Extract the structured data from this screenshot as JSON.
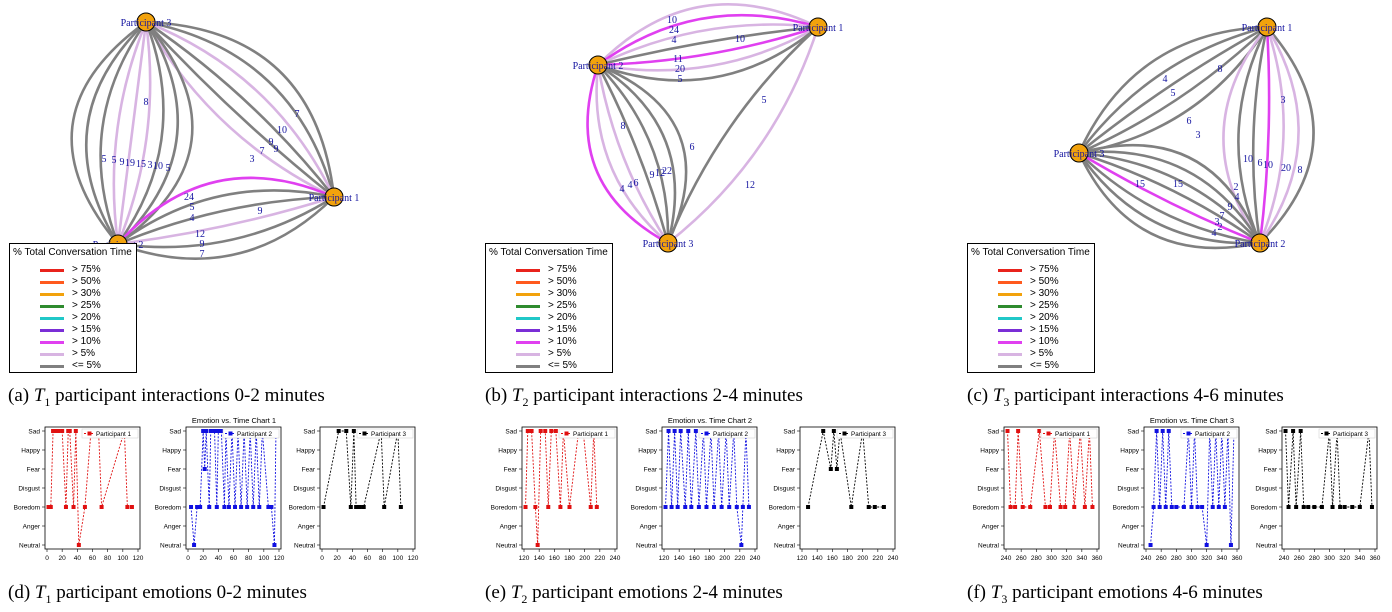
{
  "colors": {
    "node_fill": "#F2A20C",
    "node_label": "#1414A0",
    "edge_gray": "#808080",
    "edge_light": "#D8B4E2",
    "edge_magenta": "#E040F0",
    "emotion_p1": "#E01010",
    "emotion_p2": "#1010E0",
    "emotion_p3": "#000000"
  },
  "legend": {
    "title": "% Total Conversation Time",
    "items": [
      {
        "label": "> 75%",
        "color": "#E8231C"
      },
      {
        "label": "> 50%",
        "color": "#FF5A1E"
      },
      {
        "label": "> 30%",
        "color": "#F2A20C"
      },
      {
        "label": "> 25%",
        "color": "#2E8B2E"
      },
      {
        "label": "> 20%",
        "color": "#20C8C8"
      },
      {
        "label": "> 15%",
        "color": "#7A2ED6"
      },
      {
        "label": "> 10%",
        "color": "#E040F0"
      },
      {
        "label": "> 5%",
        "color": "#D8B4E2"
      },
      {
        "label": "<= 5%",
        "color": "#808080"
      }
    ]
  },
  "networks": [
    {
      "caption_prefix": "(a) ",
      "caption_var": "T",
      "caption_sub": "1",
      "caption_rest": " participant interactions 0-2 minutes",
      "nodes": [
        {
          "id": "P3",
          "label": "Participant 3"
        },
        {
          "id": "P1",
          "label": "Participant 1"
        },
        {
          "id": "P2",
          "label": "Participant 2"
        }
      ],
      "edge_labels": [
        "8",
        "7",
        "10",
        "9",
        "9",
        "7",
        "3",
        "5",
        "5",
        "9",
        "19",
        "15",
        "3",
        "10",
        "5",
        "24",
        "5",
        "4",
        "9",
        "12",
        "9",
        "7"
      ]
    },
    {
      "caption_prefix": "(b) ",
      "caption_var": "T",
      "caption_sub": "2",
      "caption_rest": " participant interactions 2-4 minutes",
      "nodes": [
        {
          "id": "P2",
          "label": "Participant 2"
        },
        {
          "id": "P1",
          "label": "Participant 1"
        },
        {
          "id": "P3",
          "label": "Participant 3"
        }
      ],
      "edge_labels": [
        "10",
        "24",
        "4",
        "10",
        "11",
        "20",
        "5",
        "5",
        "6",
        "12",
        "8",
        "4",
        "4",
        "6",
        "9",
        "12",
        "22"
      ]
    },
    {
      "caption_prefix": "(c) ",
      "caption_var": "T",
      "caption_sub": "3",
      "caption_rest": " participant interactions 4-6 minutes",
      "nodes": [
        {
          "id": "P1",
          "label": "Participant 1"
        },
        {
          "id": "P3",
          "label": "Participant 3"
        },
        {
          "id": "P2",
          "label": "Participant 2"
        }
      ],
      "edge_labels": [
        "4",
        "5",
        "8",
        "6",
        "3",
        "3",
        "10",
        "6",
        "10",
        "15",
        "20",
        "8",
        "15",
        "2",
        "4",
        "9",
        "7",
        "3",
        "2",
        "4"
      ]
    }
  ],
  "emotion_charts": [
    {
      "caption_prefix": "(d) ",
      "caption_var": "T",
      "caption_sub": "1",
      "caption_rest": " participant emotions 0-2 minutes",
      "title": "Emotion vs. Time Chart 1",
      "y_categories": [
        "Sad",
        "Happy",
        "Fear",
        "Disgust",
        "Boredom",
        "Anger",
        "Neutral"
      ],
      "panels": [
        {
          "legend": "Participant 1",
          "color": "#E01010",
          "xticks": [
            "0",
            "20",
            "40",
            "60",
            "80",
            "100",
            "120"
          ],
          "xlim": [
            0,
            120
          ],
          "points": [
            [
              2,
              4
            ],
            [
              5,
              4
            ],
            [
              8,
              0
            ],
            [
              12,
              0
            ],
            [
              15,
              0
            ],
            [
              20,
              0
            ],
            [
              25,
              4
            ],
            [
              28,
              0
            ],
            [
              30,
              0
            ],
            [
              35,
              4
            ],
            [
              38,
              0
            ],
            [
              42,
              6
            ],
            [
              50,
              4
            ],
            [
              58,
              0
            ],
            [
              68,
              0
            ],
            [
              72,
              4
            ],
            [
              102,
              0
            ],
            [
              106,
              4
            ],
            [
              112,
              4
            ]
          ]
        },
        {
          "legend": "Participant 2",
          "color": "#1010E0",
          "xticks": [
            "0",
            "20",
            "40",
            "60",
            "80",
            "100",
            "120"
          ],
          "xlim": [
            0,
            120
          ],
          "points": [
            [
              4,
              4
            ],
            [
              8,
              6
            ],
            [
              12,
              4
            ],
            [
              16,
              4
            ],
            [
              20,
              0
            ],
            [
              22,
              2
            ],
            [
              24,
              0
            ],
            [
              28,
              4
            ],
            [
              30,
              0
            ],
            [
              35,
              0
            ],
            [
              38,
              4
            ],
            [
              40,
              0
            ],
            [
              44,
              0
            ],
            [
              48,
              4
            ],
            [
              50,
              0
            ],
            [
              54,
              4
            ],
            [
              58,
              0
            ],
            [
              62,
              4
            ],
            [
              66,
              0
            ],
            [
              70,
              4
            ],
            [
              74,
              0
            ],
            [
              78,
              4
            ],
            [
              82,
              0
            ],
            [
              86,
              4
            ],
            [
              90,
              0
            ],
            [
              94,
              4
            ],
            [
              98,
              0
            ],
            [
              106,
              4
            ],
            [
              110,
              4
            ],
            [
              114,
              6
            ],
            [
              116,
              0
            ]
          ]
        },
        {
          "legend": "Participant 3",
          "color": "#000000",
          "xticks": [
            "0",
            "20",
            "40",
            "60",
            "80",
            "100",
            "120"
          ],
          "xlim": [
            0,
            120
          ],
          "points": [
            [
              2,
              4
            ],
            [
              22,
              0
            ],
            [
              32,
              0
            ],
            [
              38,
              4
            ],
            [
              42,
              0
            ],
            [
              45,
              4
            ],
            [
              50,
              4
            ],
            [
              55,
              4
            ],
            [
              78,
              0
            ],
            [
              82,
              4
            ],
            [
              100,
              0
            ],
            [
              104,
              4
            ]
          ]
        }
      ]
    },
    {
      "caption_prefix": "(e) ",
      "caption_var": "T",
      "caption_sub": "2",
      "caption_rest": " participant emotions 2-4 minutes",
      "title": "Emotion vs. Time Chart 2",
      "y_categories": [
        "Sad",
        "Happy",
        "Fear",
        "Disgust",
        "Boredom",
        "Anger",
        "Neutral"
      ],
      "panels": [
        {
          "legend": "Participant 1",
          "color": "#E01010",
          "xticks": [
            "120",
            "140",
            "160",
            "180",
            "200",
            "220",
            "240"
          ],
          "xlim": [
            120,
            240
          ],
          "points": [
            [
              122,
              4
            ],
            [
              125,
              0
            ],
            [
              130,
              0
            ],
            [
              135,
              4
            ],
            [
              138,
              6
            ],
            [
              142,
              0
            ],
            [
              148,
              0
            ],
            [
              152,
              4
            ],
            [
              156,
              0
            ],
            [
              162,
              0
            ],
            [
              168,
              4
            ],
            [
              172,
              0
            ],
            [
              180,
              4
            ],
            [
              192,
              0
            ],
            [
              198,
              0
            ],
            [
              208,
              4
            ],
            [
              212,
              0
            ],
            [
              216,
              4
            ]
          ]
        },
        {
          "legend": "Participant 2",
          "color": "#1010E0",
          "xticks": [
            "120",
            "140",
            "160",
            "180",
            "200",
            "220",
            "240"
          ],
          "xlim": [
            120,
            240
          ],
          "points": [
            [
              122,
              4
            ],
            [
              126,
              0
            ],
            [
              130,
              4
            ],
            [
              134,
              0
            ],
            [
              138,
              4
            ],
            [
              142,
              0
            ],
            [
              148,
              4
            ],
            [
              152,
              0
            ],
            [
              156,
              4
            ],
            [
              162,
              0
            ],
            [
              166,
              4
            ],
            [
              172,
              0
            ],
            [
              176,
              4
            ],
            [
              182,
              0
            ],
            [
              186,
              4
            ],
            [
              192,
              0
            ],
            [
              196,
              4
            ],
            [
              202,
              0
            ],
            [
              206,
              4
            ],
            [
              212,
              0
            ],
            [
              216,
              4
            ],
            [
              222,
              6
            ],
            [
              224,
              4
            ],
            [
              228,
              0
            ],
            [
              232,
              4
            ]
          ]
        },
        {
          "legend": "Participant 3",
          "color": "#000000",
          "xticks": [
            "120",
            "140",
            "160",
            "180",
            "200",
            "220",
            "240"
          ],
          "xlim": [
            120,
            240
          ],
          "points": [
            [
              128,
              4
            ],
            [
              148,
              0
            ],
            [
              158,
              2
            ],
            [
              162,
              0
            ],
            [
              166,
              2
            ],
            [
              170,
              0
            ],
            [
              185,
              4
            ],
            [
              200,
              0
            ],
            [
              208,
              4
            ],
            [
              216,
              4
            ],
            [
              228,
              4
            ]
          ]
        }
      ]
    },
    {
      "caption_prefix": "(f) ",
      "caption_var": "T",
      "caption_sub": "3",
      "caption_rest": " participant emotions 4-6 minutes",
      "title": "Emotion vs. Time Chart 3",
      "y_categories": [
        "Sad",
        "Happy",
        "Fear",
        "Disgust",
        "Boredom",
        "Anger",
        "Neutral"
      ],
      "panels": [
        {
          "legend": "Participant 1",
          "color": "#E01010",
          "xticks": [
            "240",
            "260",
            "280",
            "300",
            "320",
            "340",
            "360"
          ],
          "xlim": [
            240,
            360
          ],
          "points": [
            [
              242,
              0
            ],
            [
              246,
              4
            ],
            [
              252,
              4
            ],
            [
              256,
              0
            ],
            [
              262,
              4
            ],
            [
              272,
              4
            ],
            [
              284,
              0
            ],
            [
              292,
              4
            ],
            [
              298,
              4
            ],
            [
              304,
              0
            ],
            [
              312,
              4
            ],
            [
              318,
              4
            ],
            [
              324,
              0
            ],
            [
              330,
              4
            ],
            [
              338,
              0
            ],
            [
              344,
              4
            ],
            [
              350,
              0
            ],
            [
              354,
              4
            ]
          ]
        },
        {
          "legend": "Participant 2",
          "color": "#1010E0",
          "xticks": [
            "240",
            "260",
            "280",
            "300",
            "320",
            "340",
            "360"
          ],
          "xlim": [
            240,
            360
          ],
          "points": [
            [
              246,
              6
            ],
            [
              250,
              4
            ],
            [
              254,
              0
            ],
            [
              258,
              4
            ],
            [
              262,
              0
            ],
            [
              266,
              4
            ],
            [
              270,
              0
            ],
            [
              274,
              4
            ],
            [
              280,
              4
            ],
            [
              290,
              4
            ],
            [
              296,
              0
            ],
            [
              300,
              4
            ],
            [
              304,
              0
            ],
            [
              308,
              4
            ],
            [
              314,
              4
            ],
            [
              320,
              6
            ],
            [
              324,
              0
            ],
            [
              328,
              4
            ],
            [
              332,
              0
            ],
            [
              336,
              4
            ],
            [
              340,
              0
            ],
            [
              344,
              4
            ],
            [
              348,
              0
            ],
            [
              352,
              6
            ],
            [
              356,
              0
            ]
          ]
        },
        {
          "legend": "Participant 3",
          "color": "#000000",
          "xticks": [
            "240",
            "260",
            "280",
            "300",
            "320",
            "340",
            "360"
          ],
          "xlim": [
            240,
            360
          ],
          "points": [
            [
              242,
              0
            ],
            [
              246,
              4
            ],
            [
              252,
              0
            ],
            [
              256,
              4
            ],
            [
              262,
              0
            ],
            [
              266,
              4
            ],
            [
              272,
              4
            ],
            [
              280,
              4
            ],
            [
              290,
              4
            ],
            [
              300,
              0
            ],
            [
              304,
              4
            ],
            [
              310,
              0
            ],
            [
              314,
              4
            ],
            [
              320,
              4
            ],
            [
              330,
              4
            ],
            [
              340,
              4
            ],
            [
              352,
              0
            ],
            [
              356,
              4
            ]
          ]
        }
      ]
    }
  ]
}
